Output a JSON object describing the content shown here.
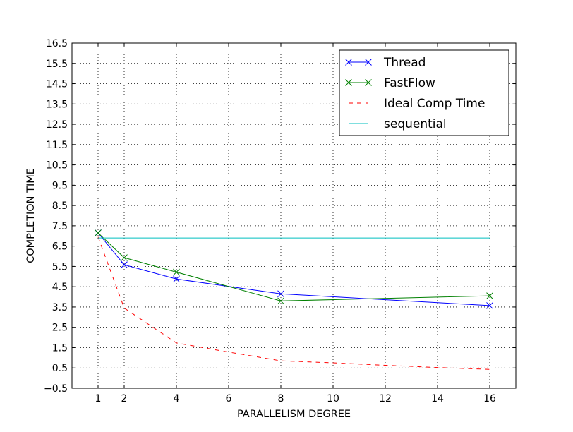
{
  "chart_data": {
    "type": "line",
    "title": "",
    "xlabel": "PARALLELISM DEGREE",
    "ylabel": "COMPLETION TIME",
    "xlim": [
      0,
      17
    ],
    "ylim": [
      -0.5,
      16.5
    ],
    "xticks": [
      1,
      2,
      4,
      6,
      8,
      10,
      12,
      14,
      16
    ],
    "yticks": [
      -0.5,
      0.5,
      1.5,
      2.5,
      3.5,
      4.5,
      5.5,
      6.5,
      7.5,
      8.5,
      9.5,
      10.5,
      11.5,
      12.5,
      13.5,
      14.5,
      15.5,
      16.5
    ],
    "xtick_labels": [
      "1",
      "2",
      "4",
      "6",
      "8",
      "10",
      "12",
      "14",
      "16"
    ],
    "ytick_labels": [
      "−0.5",
      "0.5",
      "1.5",
      "2.5",
      "3.5",
      "4.5",
      "5.5",
      "6.5",
      "7.5",
      "8.5",
      "9.5",
      "10.5",
      "11.5",
      "12.5",
      "13.5",
      "14.5",
      "15.5",
      "16.5"
    ],
    "grid": true,
    "legend_position": "top-right",
    "series": [
      {
        "name": "Thread",
        "color": "#0000ff",
        "style": "solid",
        "marker": "x",
        "x": [
          1,
          2,
          4,
          8,
          16
        ],
        "y": [
          7.15,
          5.58,
          4.88,
          4.15,
          3.57
        ]
      },
      {
        "name": "FastFlow",
        "color": "#008000",
        "style": "solid",
        "marker": "x",
        "x": [
          1,
          2,
          4,
          8,
          16
        ],
        "y": [
          7.15,
          5.93,
          5.22,
          3.8,
          4.05
        ]
      },
      {
        "name": "Ideal Comp Time",
        "color": "#ff0000",
        "style": "dashed",
        "marker": "none",
        "x": [
          1,
          2,
          4,
          6,
          8,
          10,
          12,
          14,
          16
        ],
        "y": [
          6.95,
          3.45,
          1.73,
          1.28,
          0.85,
          0.75,
          0.63,
          0.52,
          0.43
        ]
      },
      {
        "name": "sequential",
        "color": "#00bfbf",
        "style": "solid",
        "marker": "none",
        "x": [
          1,
          16
        ],
        "y": [
          6.9,
          6.9
        ]
      }
    ]
  }
}
